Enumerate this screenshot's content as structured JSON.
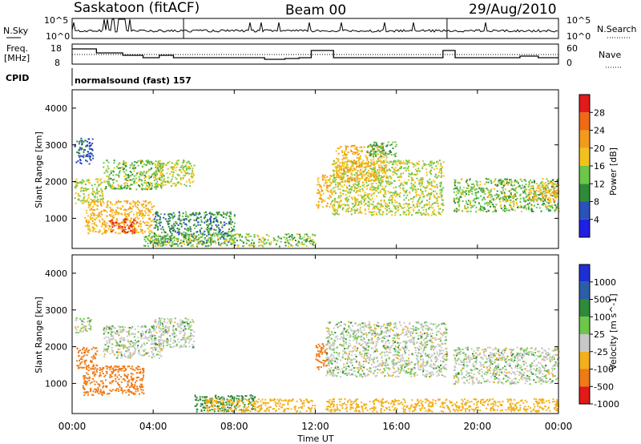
{
  "header": {
    "station": "Saskatoon (fitACF)",
    "beam": "Beam 00",
    "date": "29/Aug/2010"
  },
  "top_panels": {
    "nsky_label": "N.Sky",
    "nsky_ticks": [
      "10^5",
      "10^0"
    ],
    "nsearch_label": "N.Search",
    "freq_label_1": "Freq.",
    "freq_label_2": "[MHz]",
    "freq_ticks": [
      "18",
      "8"
    ],
    "nave_label": "Nave",
    "nave_ticks": [
      "60",
      "0"
    ],
    "cpid_label": "CPID",
    "cpid_value": "normalsound (fast) 157"
  },
  "x_axis": {
    "ticks": [
      "00:00",
      "04:00",
      "08:00",
      "12:00",
      "16:00",
      "20:00",
      "00:00"
    ],
    "title": "Time UT"
  },
  "y_axis": {
    "title": "Slant Range [km]",
    "ticks": [
      "1000",
      "2000",
      "3000",
      "4000"
    ]
  },
  "power_scale": {
    "title": "Power [dB]",
    "ticks": [
      "4",
      "8",
      "12",
      "16",
      "20",
      "24",
      "28"
    ],
    "colors": [
      "#1f1fe6",
      "#2a52b8",
      "#2f8a3a",
      "#6cc64a",
      "#f2c21c",
      "#f29a1c",
      "#ef6a16",
      "#e21a1a"
    ]
  },
  "velocity_scale": {
    "title": "Velocity [m s^-1]",
    "ticks": [
      "1000",
      "500",
      "100",
      "25",
      "-25",
      "-100",
      "-500",
      "-1000"
    ],
    "colors": [
      "#1f2fd6",
      "#2a5fa8",
      "#2f8a3a",
      "#6cc64a",
      "#c8c8c8",
      "#f2b01c",
      "#ef7a16",
      "#e21a1a"
    ]
  },
  "chart_data": [
    {
      "type": "heatmap",
      "panel": "power",
      "x_range_hours": [
        0,
        24
      ],
      "y_range_km": [
        180,
        4500
      ],
      "color_range_db": [
        0,
        30
      ],
      "regions": [
        {
          "t": [
            0.1,
            1.0
          ],
          "r": [
            2500,
            3200
          ],
          "v": 6
        },
        {
          "t": [
            0.1,
            1.5
          ],
          "r": [
            1400,
            2100
          ],
          "v": 16
        },
        {
          "t": [
            0.6,
            4.0
          ],
          "r": [
            600,
            1500
          ],
          "v": 20
        },
        {
          "t": [
            1.8,
            3.2
          ],
          "r": [
            600,
            1000
          ],
          "v": 28
        },
        {
          "t": [
            1.5,
            4.5
          ],
          "r": [
            1800,
            2600
          ],
          "v": 14
        },
        {
          "t": [
            4.0,
            6.0
          ],
          "r": [
            1900,
            2600
          ],
          "v": 16
        },
        {
          "t": [
            4.0,
            8.0
          ],
          "r": [
            300,
            1200
          ],
          "v": 10
        },
        {
          "t": [
            3.5,
            12.0
          ],
          "r": [
            250,
            600
          ],
          "v": 14
        },
        {
          "t": [
            12.0,
            12.8
          ],
          "r": [
            1300,
            2200
          ],
          "v": 20
        },
        {
          "t": [
            12.8,
            18.3
          ],
          "r": [
            1100,
            2600
          ],
          "v": 16
        },
        {
          "t": [
            13.0,
            15.5
          ],
          "r": [
            2000,
            3000
          ],
          "v": 20
        },
        {
          "t": [
            14.5,
            16.0
          ],
          "r": [
            2700,
            3100
          ],
          "v": 12
        },
        {
          "t": [
            18.8,
            24.0
          ],
          "r": [
            1200,
            2100
          ],
          "v": 14
        },
        {
          "t": [
            22.5,
            24.0
          ],
          "r": [
            1500,
            2000
          ],
          "v": 20
        }
      ]
    },
    {
      "type": "heatmap",
      "panel": "velocity",
      "x_range_hours": [
        0,
        24
      ],
      "y_range_km": [
        180,
        4500
      ],
      "color_range_ms": [
        -1000,
        1000
      ],
      "regions": [
        {
          "t": [
            0.1,
            1.0
          ],
          "r": [
            2400,
            2800
          ],
          "v": 0
        },
        {
          "t": [
            0.2,
            1.2
          ],
          "r": [
            1400,
            2000
          ],
          "v": -200
        },
        {
          "t": [
            0.5,
            3.5
          ],
          "r": [
            700,
            1500
          ],
          "v": -300
        },
        {
          "t": [
            1.5,
            4.5
          ],
          "r": [
            1700,
            2600
          ],
          "v": 0
        },
        {
          "t": [
            4.0,
            6.0
          ],
          "r": [
            2000,
            2800
          ],
          "v": 0
        },
        {
          "t": [
            6.0,
            9.0
          ],
          "r": [
            250,
            700
          ],
          "v": 60
        },
        {
          "t": [
            6.5,
            12.0
          ],
          "r": [
            250,
            600
          ],
          "v": -60
        },
        {
          "t": [
            12.0,
            12.6
          ],
          "r": [
            1400,
            2100
          ],
          "v": -400
        },
        {
          "t": [
            12.5,
            18.5
          ],
          "r": [
            1200,
            2700
          ],
          "v": 0
        },
        {
          "t": [
            18.8,
            24.0
          ],
          "r": [
            1000,
            2000
          ],
          "v": 0
        },
        {
          "t": [
            12.5,
            24.0
          ],
          "r": [
            250,
            600
          ],
          "v": -60
        }
      ]
    }
  ]
}
